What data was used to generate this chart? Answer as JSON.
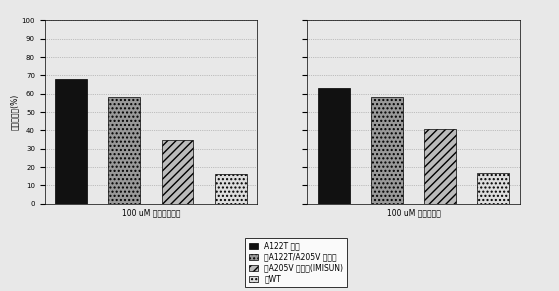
{
  "groups": [
    "100 uM イマザモクス",
    "100 uM イマザピル"
  ],
  "values_group1": [
    68,
    58,
    35,
    16
  ],
  "values_group2": [
    63,
    58,
    41,
    17
  ],
  "ylim": [
    0,
    100
  ],
  "yticks": [
    0,
    10,
    20,
    30,
    40,
    50,
    60,
    70,
    80,
    90,
    100
  ],
  "ylabel": "未処理対照(%)",
  "legend_labels": [
    "A122T ホモ",
    "A122T/A205V ヘテロ",
    "A205V ホモ　(IMISUN)",
    "WT"
  ],
  "bg_color": "#e8e8e8",
  "bar_width": 0.6
}
